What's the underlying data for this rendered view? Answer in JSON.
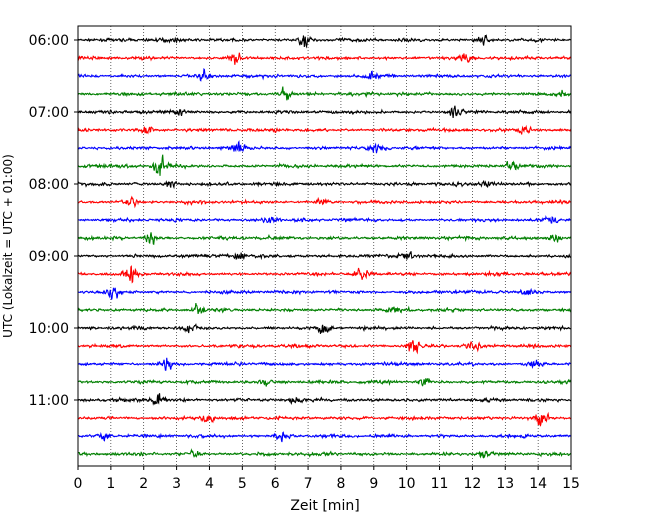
{
  "chart_data": {
    "type": "line",
    "title": "",
    "xlabel": "Zeit  [min]",
    "ylabel": "UTC (Lokalzeit = UTC + 01:00)",
    "xlim": [
      0,
      15
    ],
    "x_ticks": [
      "0",
      "1",
      "2",
      "3",
      "4",
      "5",
      "6",
      "7",
      "8",
      "9",
      "10",
      "11",
      "12",
      "13",
      "14",
      "15"
    ],
    "y_ticks": [
      "06:00",
      "07:00",
      "08:00",
      "09:00",
      "10:00",
      "11:00"
    ],
    "vertical_grid": true,
    "grid_style": "dotted",
    "trace_interval_min": 15,
    "trace_start": "06:00",
    "trace_count": 24,
    "trace_color_cycle": [
      "#000000",
      "#ff0000",
      "#0000ff",
      "#007f00"
    ],
    "series": [
      {
        "start": "06:00",
        "events": [
          [
            6.9,
            0.55
          ],
          [
            12.3,
            0.45
          ]
        ]
      },
      {
        "start": "06:15",
        "events": [
          [
            4.8,
            0.7
          ],
          [
            11.8,
            0.35
          ]
        ]
      },
      {
        "start": "06:30",
        "events": [
          [
            3.8,
            0.5
          ],
          [
            8.9,
            0.4
          ]
        ]
      },
      {
        "start": "06:45",
        "events": [
          [
            6.3,
            0.4
          ],
          [
            14.7,
            0.3
          ]
        ]
      },
      {
        "start": "07:00",
        "events": [
          [
            11.5,
            0.55
          ],
          [
            3.1,
            0.35
          ]
        ]
      },
      {
        "start": "07:15",
        "events": [
          [
            2.1,
            0.45
          ],
          [
            13.6,
            0.5
          ]
        ]
      },
      {
        "start": "07:30",
        "events": [
          [
            4.9,
            0.55
          ],
          [
            9.1,
            0.45
          ]
        ]
      },
      {
        "start": "07:45",
        "events": [
          [
            2.5,
            0.7
          ],
          [
            13.2,
            0.55
          ]
        ]
      },
      {
        "start": "08:00",
        "events": [
          [
            2.8,
            0.45
          ],
          [
            12.4,
            0.3
          ]
        ]
      },
      {
        "start": "08:15",
        "events": [
          [
            1.6,
            0.45
          ],
          [
            7.4,
            0.3
          ]
        ]
      },
      {
        "start": "08:30",
        "events": [
          [
            5.8,
            0.35
          ],
          [
            14.4,
            0.3
          ]
        ]
      },
      {
        "start": "08:45",
        "events": [
          [
            2.2,
            0.35
          ],
          [
            14.5,
            0.45
          ]
        ]
      },
      {
        "start": "09:00",
        "events": [
          [
            10.0,
            0.5
          ],
          [
            4.9,
            0.35
          ]
        ]
      },
      {
        "start": "09:15",
        "events": [
          [
            1.6,
            0.65
          ],
          [
            8.6,
            0.35
          ]
        ]
      },
      {
        "start": "09:30",
        "events": [
          [
            1.1,
            0.4
          ],
          [
            13.7,
            0.3
          ]
        ]
      },
      {
        "start": "09:45",
        "events": [
          [
            3.7,
            0.3
          ],
          [
            9.7,
            0.3
          ]
        ]
      },
      {
        "start": "10:00",
        "events": [
          [
            7.5,
            0.45
          ],
          [
            3.4,
            0.35
          ]
        ]
      },
      {
        "start": "10:15",
        "events": [
          [
            10.2,
            0.75
          ],
          [
            12.0,
            0.3
          ]
        ]
      },
      {
        "start": "10:30",
        "events": [
          [
            2.7,
            0.6
          ],
          [
            13.9,
            0.3
          ]
        ]
      },
      {
        "start": "10:45",
        "events": [
          [
            10.5,
            0.45
          ],
          [
            5.7,
            0.35
          ]
        ]
      },
      {
        "start": "11:00",
        "events": [
          [
            2.4,
            0.55
          ],
          [
            6.6,
            0.3
          ]
        ]
      },
      {
        "start": "11:15",
        "events": [
          [
            14.1,
            0.75
          ],
          [
            3.9,
            0.35
          ]
        ]
      },
      {
        "start": "11:30",
        "events": [
          [
            0.8,
            0.4
          ],
          [
            6.2,
            0.4
          ]
        ]
      },
      {
        "start": "11:45",
        "events": [
          [
            3.6,
            0.35
          ],
          [
            12.3,
            0.3
          ]
        ]
      }
    ]
  }
}
